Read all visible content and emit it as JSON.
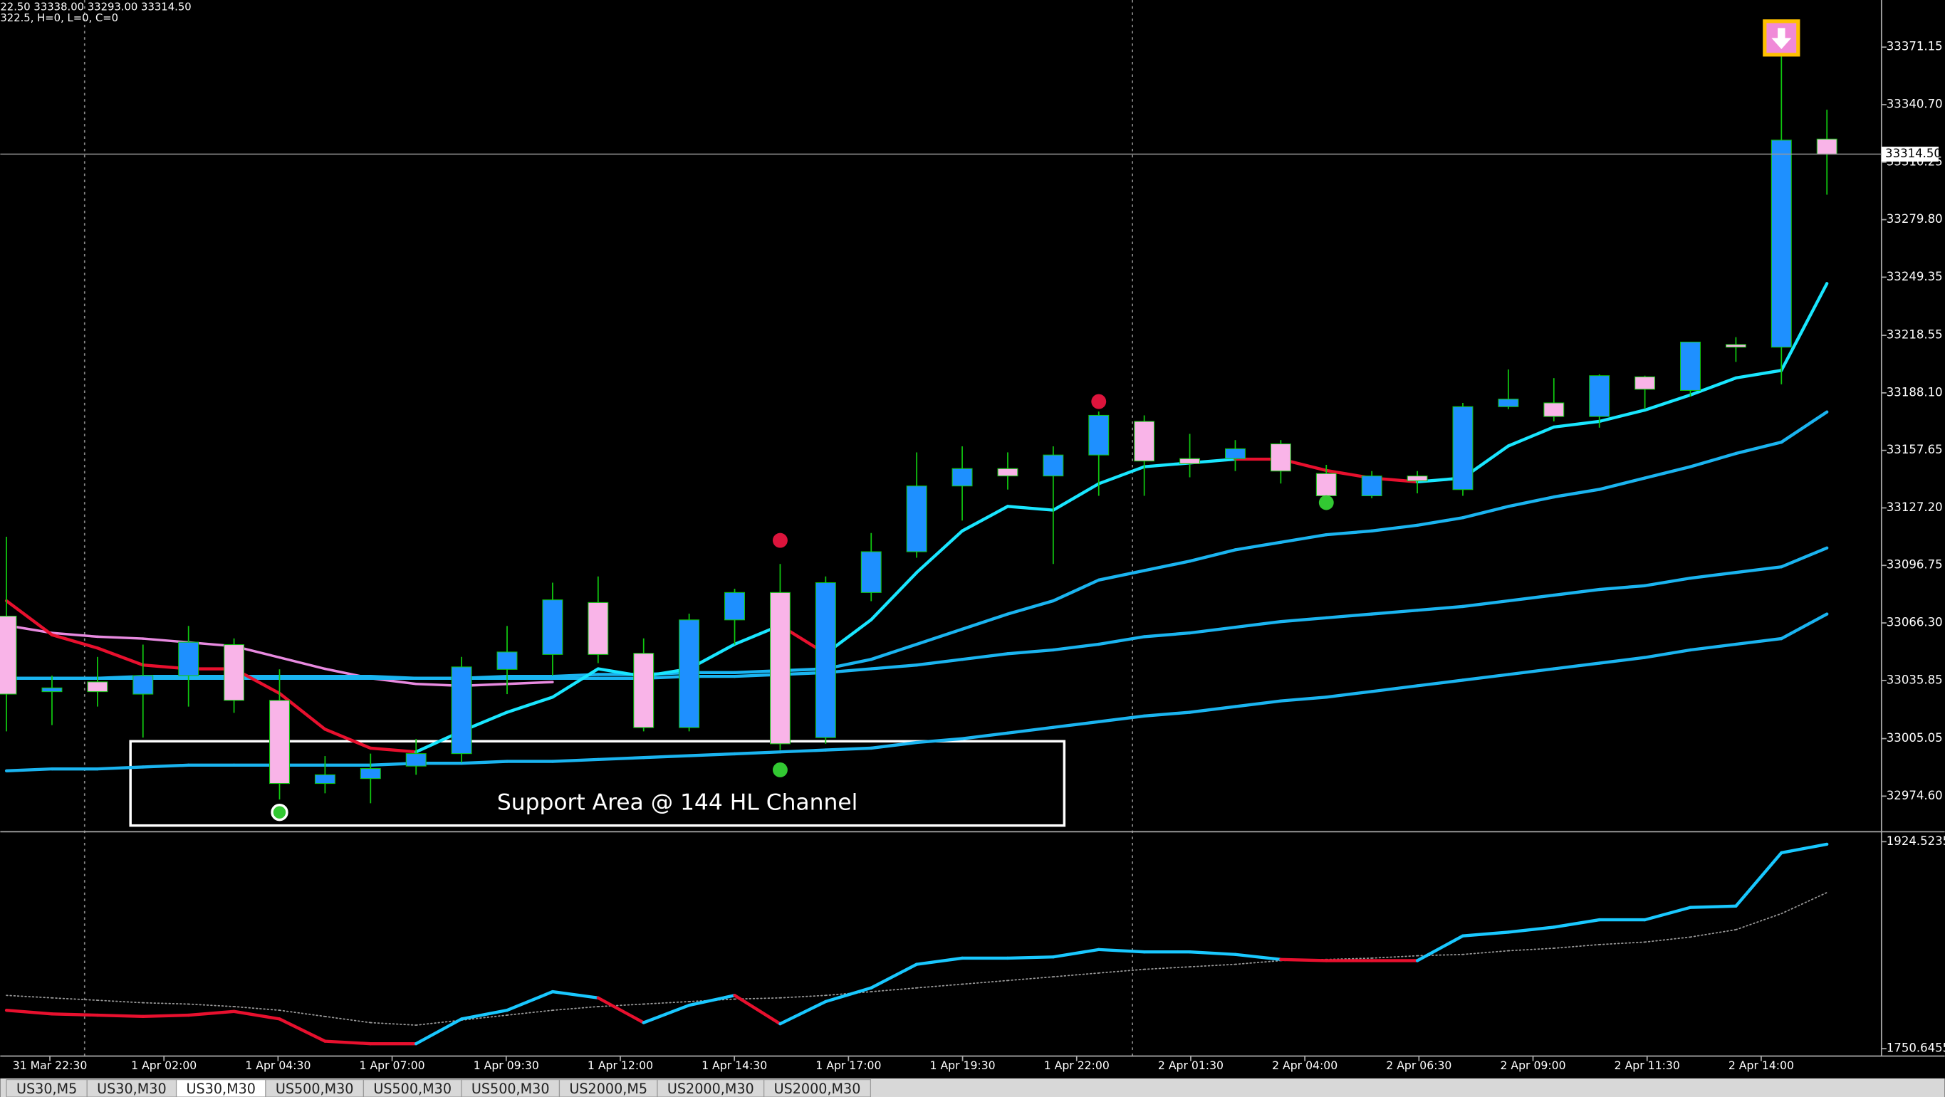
{
  "chart_data": {
    "type": "candlestick",
    "header": [
      "22.50 33338.00 33293.00 33314.50",
      "322.5, H=0, L=0, C=0"
    ],
    "ylim": [
      32956.4,
      33396.1
    ],
    "yticks": [
      33371.15,
      {
        "value": 33340.7,
        "label": "33340.70"
      },
      33310.25,
      {
        "value": 33279.8,
        "label": "33279.80"
      },
      33249.35,
      33218.55,
      {
        "value": 33188.1,
        "label": "33188.10"
      },
      33157.65,
      {
        "value": 33127.2,
        "label": "33127.20"
      },
      33096.75,
      {
        "value": 33066.3,
        "label": "33066.30"
      },
      33035.85,
      33005.05,
      {
        "value": 32974.6,
        "label": "32974.60"
      }
    ],
    "current_price": {
      "value": 33314.5,
      "label": "33314.50"
    },
    "categories": [
      "31 Mar 22:30",
      "1 Apr 02:00",
      "1 Apr 04:30",
      "1 Apr 07:00",
      "1 Apr 09:30",
      "1 Apr 12:00",
      "1 Apr 14:30",
      "1 Apr 17:00",
      "1 Apr 19:30",
      "1 Apr 22:00",
      "2 Apr 01:30",
      "2 Apr 04:00",
      "2 Apr 06:30",
      "2 Apr 09:00",
      "2 Apr 11:30",
      "2 Apr 14:00"
    ],
    "up_color": "#1e90ff",
    "down_color": "#f9b4e8",
    "wick_color": "#10c810",
    "candles": [
      {
        "open": 33069.9,
        "high": 33111.9,
        "low": 33008.9,
        "close": 33028.6
      },
      {
        "open": 33029.9,
        "high": 33038.4,
        "low": 33012.2,
        "close": 33031.9
      },
      {
        "open": 33035.1,
        "high": 33048.3,
        "low": 33022.0,
        "close": 33029.9
      },
      {
        "open": 33028.6,
        "high": 33054.8,
        "low": 33005.6,
        "close": 33038.4
      },
      {
        "open": 33038.4,
        "high": 33064.7,
        "low": 33022.0,
        "close": 33056.1
      },
      {
        "open": 33054.8,
        "high": 33058.1,
        "low": 33018.7,
        "close": 33025.3
      },
      {
        "open": 33025.3,
        "high": 33041.7,
        "low": 32972.8,
        "close": 32981.3
      },
      {
        "open": 32981.3,
        "high": 32995.8,
        "low": 32976.1,
        "close": 32985.9
      },
      {
        "open": 32983.9,
        "high": 32997.1,
        "low": 32970.8,
        "close": 32989.2
      },
      {
        "open": 32990.5,
        "high": 33004.9,
        "low": 32985.9,
        "close": 32997.1
      },
      {
        "open": 32997.1,
        "high": 33048.3,
        "low": 32992.5,
        "close": 33043.0
      },
      {
        "open": 33041.7,
        "high": 33064.7,
        "low": 33028.6,
        "close": 33050.9
      },
      {
        "open": 33049.6,
        "high": 33087.6,
        "low": 33038.4,
        "close": 33078.5
      },
      {
        "open": 33077.1,
        "high": 33090.9,
        "low": 33045.0,
        "close": 33049.6
      },
      {
        "open": 33050.2,
        "high": 33058.1,
        "low": 33008.9,
        "close": 33010.9
      },
      {
        "open": 33010.9,
        "high": 33071.2,
        "low": 33008.9,
        "close": 33067.9
      },
      {
        "open": 33067.9,
        "high": 33084.4,
        "low": 33054.8,
        "close": 33082.4
      },
      {
        "open": 33082.4,
        "high": 33097.5,
        "low": 32999.0,
        "close": 33002.3
      },
      {
        "open": 33005.6,
        "high": 33090.9,
        "low": 33002.3,
        "close": 33087.6
      },
      {
        "open": 33082.4,
        "high": 33113.9,
        "low": 33077.8,
        "close": 33104.0
      },
      {
        "open": 33104.0,
        "high": 33156.6,
        "low": 33100.8,
        "close": 33138.8
      },
      {
        "open": 33138.8,
        "high": 33159.8,
        "low": 33120.5,
        "close": 33148.0
      },
      {
        "open": 33148.0,
        "high": 33156.6,
        "low": 33136.9,
        "close": 33144.1
      },
      {
        "open": 33144.1,
        "high": 33159.8,
        "low": 33097.5,
        "close": 33155.2
      },
      {
        "open": 33155.2,
        "high": 33178.2,
        "low": 33133.6,
        "close": 33176.2
      },
      {
        "open": 33173.0,
        "high": 33176.2,
        "low": 33133.6,
        "close": 33152.0
      },
      {
        "open": 33153.3,
        "high": 33166.4,
        "low": 33143.4,
        "close": 33150.6
      },
      {
        "open": 33153.3,
        "high": 33163.1,
        "low": 33146.7,
        "close": 33158.5
      },
      {
        "open": 33161.1,
        "high": 33163.1,
        "low": 33140.1,
        "close": 33146.7
      },
      {
        "open": 33145.4,
        "high": 33150.0,
        "low": 33130.3,
        "close": 33133.6
      },
      {
        "open": 33133.6,
        "high": 33146.7,
        "low": 33132.3,
        "close": 33144.1
      },
      {
        "open": 33144.1,
        "high": 33146.7,
        "low": 33134.9,
        "close": 33141.5
      },
      {
        "open": 33136.9,
        "high": 33182.8,
        "low": 33133.6,
        "close": 33180.8
      },
      {
        "open": 33180.8,
        "high": 33200.5,
        "low": 33179.5,
        "close": 33184.8
      },
      {
        "open": 33182.8,
        "high": 33195.9,
        "low": 33173.0,
        "close": 33175.6
      },
      {
        "open": 33175.6,
        "high": 33197.9,
        "low": 33169.7,
        "close": 33197.2
      },
      {
        "open": 33196.6,
        "high": 33197.2,
        "low": 33179.5,
        "close": 33190.0
      },
      {
        "open": 33189.4,
        "high": 33215.0,
        "low": 33186.1,
        "close": 33215.0
      },
      {
        "open": 33213.7,
        "high": 33217.6,
        "low": 33204.5,
        "close": 33212.3
      },
      {
        "open": 33212.3,
        "high": 33369.8,
        "low": 33192.6,
        "close": 33321.9
      },
      {
        "open": 33322.5,
        "high": 33338.0,
        "low": 33293.0,
        "close": 33314.5
      }
    ],
    "lines": [
      {
        "width": 2,
        "color": "#e88ae0",
        "values": [
          33065,
          33061,
          33059,
          33058,
          33056,
          33054,
          33048,
          33042,
          33037,
          33034,
          33033,
          33034,
          33035,
          null,
          null,
          null,
          null,
          null,
          null,
          null,
          null,
          null,
          null,
          null,
          null,
          null,
          null,
          null,
          null,
          null,
          null,
          null,
          null,
          null,
          null,
          null,
          null,
          null,
          null,
          null,
          null
        ]
      },
      {
        "width": 2.5,
        "color": "#1ab4f0",
        "values": [
          32988,
          32989,
          32989,
          32990,
          32991,
          32991,
          32991,
          32991,
          32991,
          32992,
          32992,
          32993,
          32993,
          32994,
          32995,
          32996,
          32997,
          32998,
          32999,
          33000,
          33003,
          33005,
          33008,
          33011,
          33014,
          33017,
          33019,
          33022,
          33025,
          33027,
          33030,
          33033,
          33036,
          33039,
          33042,
          33045,
          33048,
          33052,
          33055,
          33058,
          33071
        ]
      },
      {
        "width": 2.5,
        "color": "#1ab4f0",
        "values": [
          33037,
          33037,
          33037,
          33037,
          33037,
          33037,
          33037,
          33037,
          33037,
          33037,
          33037,
          33037,
          33037,
          33037,
          33037,
          33038,
          33038,
          33039,
          33040,
          33042,
          33044,
          33047,
          33050,
          33052,
          33055,
          33059,
          33061,
          33064,
          33067,
          33069,
          33071,
          33073,
          33075,
          33078,
          33081,
          33084,
          33086,
          33090,
          33093,
          33096,
          33106
        ]
      },
      {
        "width": 2.5,
        "color": "#1ab4f0",
        "values": [
          33037,
          33037,
          33037,
          33038,
          33038,
          33038,
          33038,
          33038,
          33038,
          33037,
          33037,
          33038,
          33038,
          33039,
          33039,
          33040,
          33040,
          33041,
          33042,
          33047,
          33055,
          33063,
          33071,
          33078,
          33089,
          33094,
          33099,
          33105,
          33109,
          33113,
          33115,
          33118,
          33122,
          33128,
          33133,
          33137,
          33143,
          33149,
          33156,
          33162,
          33178
        ]
      },
      {
        "width": 2.5,
        "values": [
          33078,
          33060,
          33053,
          33044,
          33042,
          33042,
          33029,
          33010,
          33000,
          32998,
          33009,
          33019,
          33027,
          33042,
          33038,
          33042,
          33055,
          33065,
          33050,
          33068,
          33093,
          33115,
          33128,
          33126,
          33140,
          33149,
          33151,
          33153,
          33153,
          33147,
          33143,
          33141,
          33143,
          33160,
          33170,
          33173,
          33179,
          33187,
          33196,
          33200,
          33246
        ],
        "colors": [
          "#e8102e",
          "#e8102e",
          "#e8102e",
          "#e8102e",
          "#e8102e",
          "#e8102e",
          "#e8102e",
          "#e8102e",
          "#e8102e",
          "#19e6ff",
          "#19e6ff",
          "#19e6ff",
          "#19e6ff",
          "#19e6ff",
          "#19e6ff",
          "#19e6ff",
          "#19e6ff",
          "#e8102e",
          "#19e6ff",
          "#19e6ff",
          "#19e6ff",
          "#19e6ff",
          "#19e6ff",
          "#19e6ff",
          "#19e6ff",
          "#19e6ff",
          "#19e6ff",
          "#e8102e",
          "#e8102e",
          "#e8102e",
          "#e8102e",
          "#19e6ff",
          "#19e6ff",
          "#19e6ff",
          "#19e6ff",
          "#19e6ff",
          "#19e6ff",
          "#19e6ff",
          "#19e6ff",
          "#19e6ff",
          "#19e6ff"
        ]
      }
    ],
    "signals": [
      {
        "candle": 17,
        "price": 33110,
        "color": "#dc143c"
      },
      {
        "candle": 24,
        "price": 33183.5,
        "color": "#dc143c"
      },
      {
        "candle": 17,
        "price": 32988.5,
        "color": "#32c832"
      },
      {
        "candle": 29,
        "price": 33130,
        "color": "#32c832"
      },
      {
        "candle": 6,
        "price": 32966,
        "color": "#32c832"
      }
    ],
    "alert": {
      "candle": 39,
      "price": 33376
    },
    "annotation": "Support Area @ 144 HL Channel",
    "indicator": {
      "ylim": [
        1744.4,
        1930.8
      ],
      "yticks": [
        1924.5235,
        1750.6455
      ],
      "fast": {
        "values": [
          1782.9,
          1779.8,
          1778.8,
          1777.7,
          1778.8,
          1781.9,
          1775.6,
          1756.9,
          1754.8,
          1754.8,
          1775.6,
          1782.9,
          1798.5,
          1793.3,
          1772.5,
          1787.1,
          1795.4,
          1771.5,
          1790.2,
          1801.7,
          1821.5,
          1826.7,
          1826.7,
          1827.7,
          1833.9,
          1831.9,
          1831.9,
          1829.8,
          1825.6,
          1824.6,
          1824.6,
          1824.6,
          1845.4,
          1848.5,
          1852.7,
          1858.9,
          1858.9,
          1869.3,
          1870.4,
          1915.2,
          1922.4
        ],
        "colors": [
          "#e8102e",
          "#e8102e",
          "#e8102e",
          "#e8102e",
          "#e8102e",
          "#e8102e",
          "#e8102e",
          "#e8102e",
          "#e8102e",
          "#19c8ff",
          "#19c8ff",
          "#19c8ff",
          "#19c8ff",
          "#e8102e",
          "#19c8ff",
          "#19c8ff",
          "#e8102e",
          "#19c8ff",
          "#19c8ff",
          "#19c8ff",
          "#19c8ff",
          "#19c8ff",
          "#19c8ff",
          "#19c8ff",
          "#19c8ff",
          "#19c8ff",
          "#19c8ff",
          "#19c8ff",
          "#e8102e",
          "#e8102e",
          "#e8102e",
          "#19c8ff",
          "#19c8ff",
          "#19c8ff",
          "#19c8ff",
          "#19c8ff",
          "#19c8ff",
          "#19c8ff",
          "#19c8ff",
          "#19c8ff",
          "#19c8ff"
        ]
      },
      "slow": {
        "color": "#9a9a9a",
        "values": [
          1795.4,
          1793.3,
          1791.3,
          1789.2,
          1788.1,
          1786.0,
          1782.9,
          1777.7,
          1772.5,
          1770.4,
          1774.6,
          1778.8,
          1782.9,
          1786.0,
          1788.1,
          1790.2,
          1792.3,
          1793.3,
          1795.4,
          1798.5,
          1801.7,
          1804.8,
          1807.9,
          1811.0,
          1814.2,
          1817.3,
          1819.4,
          1821.5,
          1824.6,
          1825.6,
          1826.7,
          1828.7,
          1829.8,
          1832.9,
          1835.0,
          1838.1,
          1840.2,
          1844.4,
          1850.6,
          1864.1,
          1881.8
        ]
      }
    }
  },
  "tabs": [
    "US30,M5",
    "US30,M30",
    "US30,M30",
    "US500,M30",
    "US500,M30",
    "US500,M30",
    "US2000,M5",
    "US2000,M30",
    "US2000,M30"
  ],
  "active_tab": 2
}
